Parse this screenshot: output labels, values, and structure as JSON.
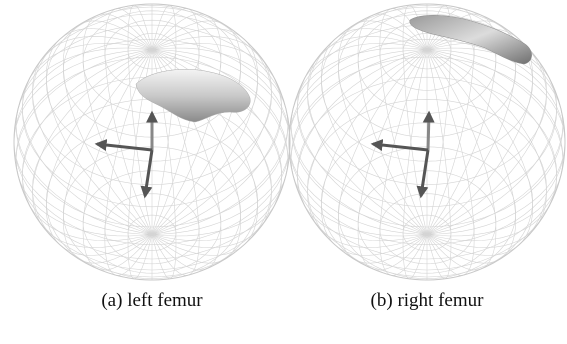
{
  "panels": [
    {
      "caption": "(a) left femur"
    },
    {
      "caption": "(b) right femur"
    }
  ]
}
